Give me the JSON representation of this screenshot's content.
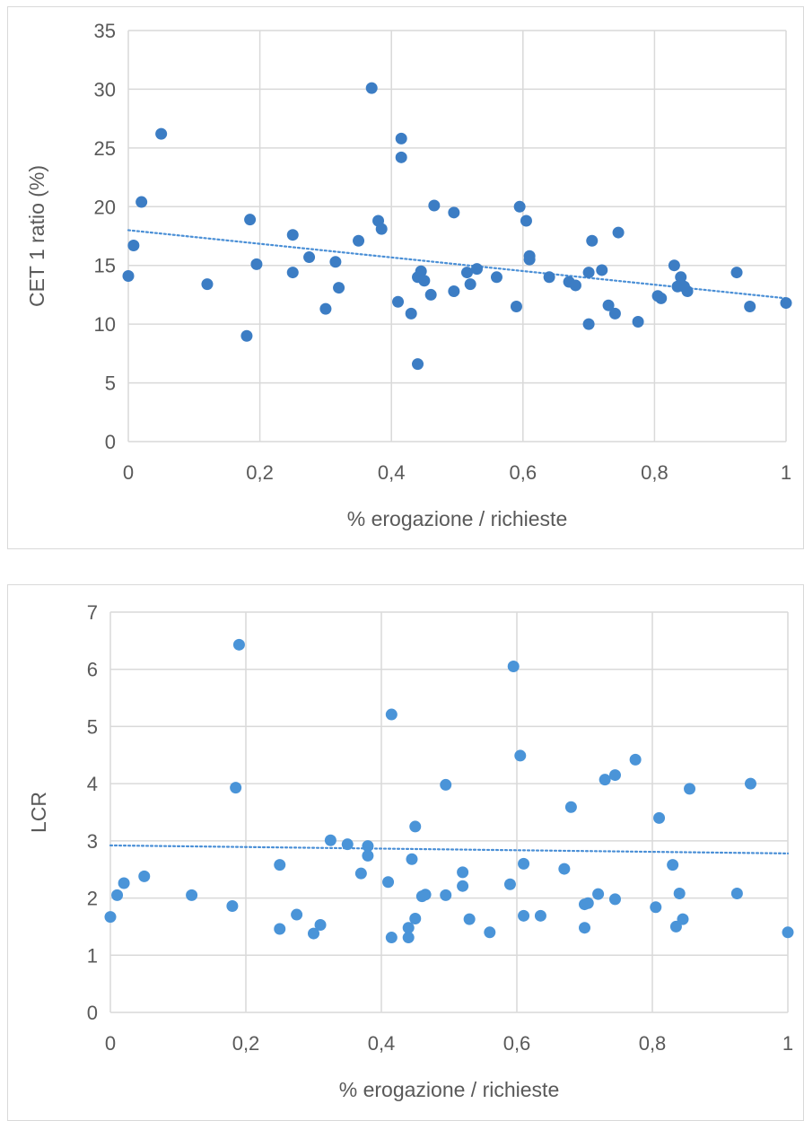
{
  "chart_data": [
    {
      "type": "scatter",
      "title": "",
      "xlabel": "% erogazione / richieste",
      "ylabel": "CET 1 ratio (%)",
      "xlim": [
        0,
        1
      ],
      "ylim": [
        0,
        35
      ],
      "x_ticks": [
        "0",
        "0,2",
        "0,4",
        "0,6",
        "0,8",
        "1"
      ],
      "y_ticks": [
        "0",
        "5",
        "10",
        "15",
        "20",
        "25",
        "30",
        "35"
      ],
      "grid": true,
      "legend": "none",
      "marker_color": "#3c7dc4",
      "trendline": {
        "style": "dotted",
        "color": "#4a8fd6",
        "y_at_x0": 18.0,
        "y_at_x1": 12.2
      },
      "points": [
        [
          0.0,
          14.1
        ],
        [
          0.008,
          16.7
        ],
        [
          0.02,
          20.4
        ],
        [
          0.05,
          26.2
        ],
        [
          0.12,
          13.4
        ],
        [
          0.18,
          9.0
        ],
        [
          0.185,
          18.9
        ],
        [
          0.195,
          15.1
        ],
        [
          0.25,
          17.6
        ],
        [
          0.25,
          14.4
        ],
        [
          0.275,
          15.7
        ],
        [
          0.3,
          11.3
        ],
        [
          0.315,
          15.3
        ],
        [
          0.32,
          13.1
        ],
        [
          0.35,
          17.1
        ],
        [
          0.37,
          30.1
        ],
        [
          0.38,
          18.8
        ],
        [
          0.385,
          18.1
        ],
        [
          0.41,
          11.9
        ],
        [
          0.415,
          25.8
        ],
        [
          0.415,
          24.2
        ],
        [
          0.43,
          10.9
        ],
        [
          0.44,
          14.0
        ],
        [
          0.44,
          6.6
        ],
        [
          0.445,
          14.5
        ],
        [
          0.45,
          13.7
        ],
        [
          0.46,
          12.5
        ],
        [
          0.465,
          20.1
        ],
        [
          0.495,
          19.5
        ],
        [
          0.495,
          12.8
        ],
        [
          0.515,
          14.4
        ],
        [
          0.52,
          13.4
        ],
        [
          0.53,
          14.7
        ],
        [
          0.56,
          14.0
        ],
        [
          0.59,
          11.5
        ],
        [
          0.595,
          20.0
        ],
        [
          0.605,
          18.8
        ],
        [
          0.61,
          15.8
        ],
        [
          0.61,
          15.5
        ],
        [
          0.64,
          14.0
        ],
        [
          0.67,
          13.6
        ],
        [
          0.68,
          13.3
        ],
        [
          0.7,
          14.4
        ],
        [
          0.7,
          10.0
        ],
        [
          0.705,
          17.1
        ],
        [
          0.72,
          14.6
        ],
        [
          0.73,
          11.6
        ],
        [
          0.74,
          10.9
        ],
        [
          0.745,
          17.8
        ],
        [
          0.775,
          10.2
        ],
        [
          0.805,
          12.4
        ],
        [
          0.81,
          12.2
        ],
        [
          0.83,
          15.0
        ],
        [
          0.835,
          13.2
        ],
        [
          0.84,
          14.0
        ],
        [
          0.845,
          13.2
        ],
        [
          0.85,
          12.8
        ],
        [
          0.925,
          14.4
        ],
        [
          0.945,
          11.5
        ],
        [
          1.0,
          11.8
        ]
      ]
    },
    {
      "type": "scatter",
      "title": "",
      "xlabel": "% erogazione / richieste",
      "ylabel": "LCR",
      "xlim": [
        0,
        1
      ],
      "ylim": [
        0,
        7
      ],
      "x_ticks": [
        "0",
        "0,2",
        "0,4",
        "0,6",
        "0,8",
        "1"
      ],
      "y_ticks": [
        "0",
        "1",
        "2",
        "3",
        "4",
        "5",
        "6",
        "7"
      ],
      "grid": true,
      "legend": "none",
      "marker_color": "#4a94d8",
      "trendline": {
        "style": "dotted",
        "color": "#4a8fd6",
        "y_at_x0": 2.92,
        "y_at_x1": 2.78
      },
      "points": [
        [
          0.0,
          1.67
        ],
        [
          0.01,
          2.05
        ],
        [
          0.02,
          2.26
        ],
        [
          0.05,
          2.38
        ],
        [
          0.12,
          2.05
        ],
        [
          0.18,
          1.86
        ],
        [
          0.185,
          3.93
        ],
        [
          0.19,
          6.43
        ],
        [
          0.25,
          2.58
        ],
        [
          0.25,
          1.46
        ],
        [
          0.275,
          1.71
        ],
        [
          0.3,
          1.38
        ],
        [
          0.31,
          1.53
        ],
        [
          0.325,
          3.01
        ],
        [
          0.35,
          2.94
        ],
        [
          0.37,
          2.43
        ],
        [
          0.38,
          2.91
        ],
        [
          0.38,
          2.74
        ],
        [
          0.41,
          2.28
        ],
        [
          0.415,
          1.31
        ],
        [
          0.415,
          5.21
        ],
        [
          0.44,
          1.48
        ],
        [
          0.44,
          1.31
        ],
        [
          0.445,
          2.68
        ],
        [
          0.45,
          3.25
        ],
        [
          0.45,
          1.64
        ],
        [
          0.46,
          2.03
        ],
        [
          0.465,
          2.06
        ],
        [
          0.495,
          3.98
        ],
        [
          0.495,
          2.05
        ],
        [
          0.52,
          2.45
        ],
        [
          0.52,
          2.21
        ],
        [
          0.53,
          1.63
        ],
        [
          0.56,
          1.4
        ],
        [
          0.59,
          2.24
        ],
        [
          0.595,
          6.05
        ],
        [
          0.605,
          4.49
        ],
        [
          0.61,
          2.6
        ],
        [
          0.61,
          1.69
        ],
        [
          0.635,
          1.69
        ],
        [
          0.67,
          2.51
        ],
        [
          0.68,
          3.59
        ],
        [
          0.7,
          1.89
        ],
        [
          0.7,
          1.48
        ],
        [
          0.705,
          1.91
        ],
        [
          0.72,
          2.07
        ],
        [
          0.73,
          4.07
        ],
        [
          0.745,
          4.15
        ],
        [
          0.745,
          1.98
        ],
        [
          0.775,
          4.42
        ],
        [
          0.805,
          1.84
        ],
        [
          0.81,
          3.4
        ],
        [
          0.83,
          2.58
        ],
        [
          0.835,
          1.5
        ],
        [
          0.84,
          2.08
        ],
        [
          0.845,
          1.63
        ],
        [
          0.855,
          3.91
        ],
        [
          0.925,
          2.08
        ],
        [
          0.945,
          4.0
        ],
        [
          1.0,
          1.4
        ]
      ]
    }
  ]
}
